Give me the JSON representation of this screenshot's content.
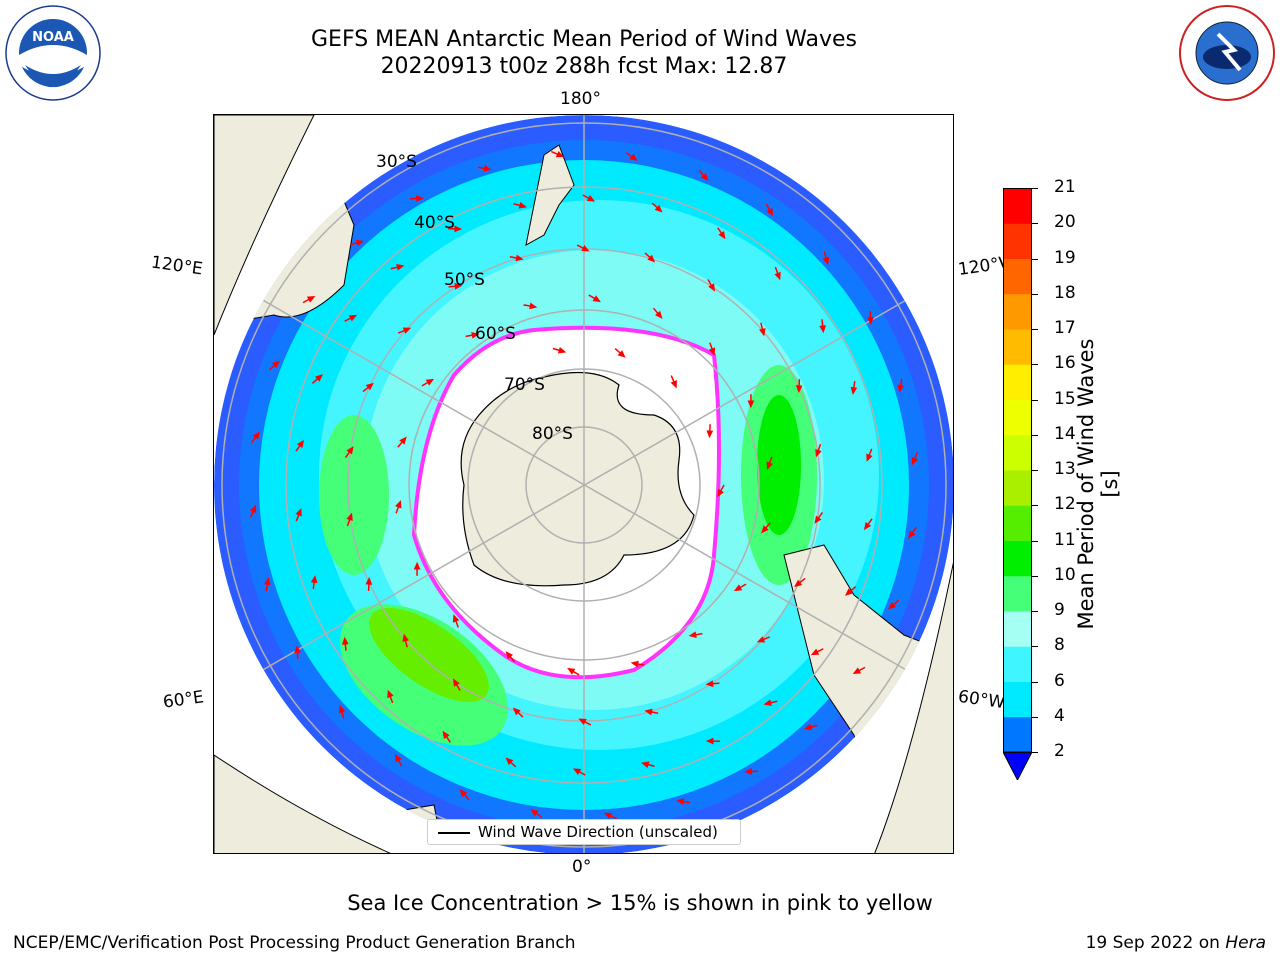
{
  "header": {
    "title_line1": "GEFS MEAN Antarctic Mean Period of Wind Waves",
    "title_line2": "20220913 t00z 288h fcst   Max: 12.87"
  },
  "logos": {
    "left": {
      "name": "noaa-logo",
      "text": "NOAA",
      "ring_text": "NATIONAL OCEANIC AND ATMOSPHERIC ADMINISTRATION · U.S. DEPARTMENT OF COMMERCE"
    },
    "right": {
      "name": "nws-logo",
      "ring_text": "NATIONAL WEATHER SERVICE"
    }
  },
  "map": {
    "projection": "South Polar Stereographic",
    "lon_labels": {
      "top": "180°",
      "bottom": "0°",
      "upper_left": "120°E",
      "upper_right": "120°W",
      "lower_left": "60°E",
      "lower_right": "60°W"
    },
    "lat_labels": [
      "30°S",
      "40°S",
      "50°S",
      "60°S",
      "70°S",
      "80°S"
    ],
    "legend_label": "Wind Wave Direction (unscaled)",
    "colors": {
      "land": "#eeecdc",
      "ice_edge": "#ff33ff",
      "arrow": "#ff0000",
      "grid": "#b0b0b0"
    }
  },
  "colorbar": {
    "label": "Mean Period of Wind Waves [s]",
    "ticks": [
      "2",
      "4",
      "6",
      "8",
      "9",
      "10",
      "11",
      "12",
      "13",
      "14",
      "15",
      "16",
      "17",
      "18",
      "19",
      "20",
      "21"
    ],
    "colors": [
      "#0000ff",
      "#0077ff",
      "#00eaff",
      "#3ff5ff",
      "#a6fff3",
      "#44ff77",
      "#00ee00",
      "#55ee00",
      "#aaee00",
      "#ccff00",
      "#eeff00",
      "#ffee00",
      "#ffbb00",
      "#ff9900",
      "#ff6600",
      "#ff3300",
      "#ff0000"
    ]
  },
  "footer": {
    "note": "Sea Ice Concentration > 15% is shown in pink to yellow",
    "left": "NCEP/EMC/Verification Post Processing Product Generation Branch",
    "right_date": "19 Sep 2022 on ",
    "right_host": "Hera"
  }
}
